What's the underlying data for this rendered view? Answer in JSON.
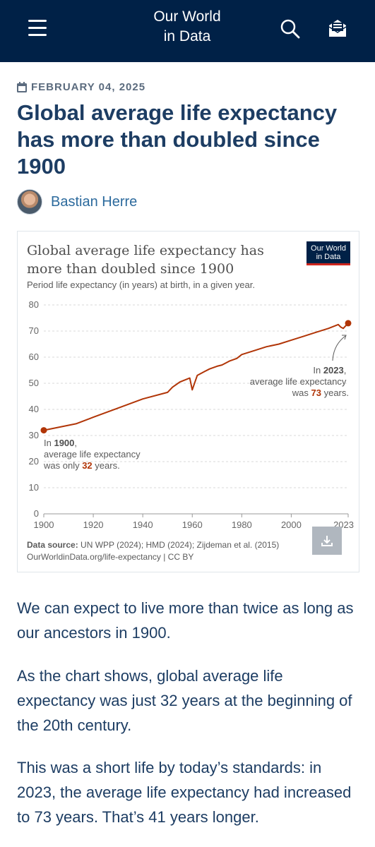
{
  "header": {
    "brand_line1": "Our World",
    "brand_line2": "in Data",
    "menu_icon": "hamburger-menu-icon",
    "search_icon": "search-icon",
    "subscribe_icon": "envelope-icon",
    "background_color": "#002147"
  },
  "article": {
    "date": "FEBRUARY 04, 2025",
    "title": "Global average life expectancy has more than doubled since 1900",
    "author": "Bastian Herre"
  },
  "chart": {
    "title": "Global average life expectancy has more than doubled since 1900",
    "subtitle": "Period life expectancy (in years) at birth, in a given year.",
    "logo_line1": "Our World",
    "logo_line2": "in Data",
    "annotation_1900": {
      "prefix": "In ",
      "year": "1900",
      "line2": "average life expectancy",
      "line3_prefix": "was only ",
      "value": "32",
      "line3_suffix": " years."
    },
    "annotation_2023": {
      "prefix": "In ",
      "year": "2023",
      "line2": "average life expectancy",
      "line3_prefix": "was ",
      "value": "73",
      "line3_suffix": " years."
    },
    "source_label": "Data source:",
    "source_text": "UN WPP (2024); HMD (2024); Zijdeman et al. (2015)",
    "source_url": "OurWorldinData.org/life-expectancy | CC BY",
    "download_icon": "download-icon",
    "line_color": "#b13507"
  },
  "chart_data": {
    "type": "line",
    "title": "Global average life expectancy has more than doubled since 1900",
    "subtitle": "Period life expectancy (in years) at birth, in a given year.",
    "xlim": [
      1900,
      2023
    ],
    "ylim": [
      0,
      80
    ],
    "x_ticks": [
      "1900",
      "1920",
      "1940",
      "1960",
      "1980",
      "2000",
      "2023"
    ],
    "y_ticks": [
      "0",
      "10",
      "20",
      "30",
      "40",
      "50",
      "60",
      "70",
      "80"
    ],
    "grid": true,
    "series": [
      {
        "x": [
          1900,
          1913,
          1920,
          1930,
          1940,
          1950,
          1952,
          1955,
          1959,
          1960,
          1962,
          1965,
          1967,
          1970,
          1972,
          1975,
          1978,
          1980,
          1985,
          1990,
          1995,
          2000,
          2005,
          2010,
          2015,
          2019,
          2020,
          2021,
          2022,
          2023
        ],
        "y": [
          32,
          34.5,
          37,
          40.5,
          44,
          46.5,
          48.5,
          50.5,
          52,
          47.5,
          53,
          54.5,
          55.5,
          56.5,
          57,
          58.5,
          59.5,
          61,
          62.5,
          64,
          65,
          66.5,
          68,
          69.5,
          71,
          72.5,
          71.5,
          71,
          72,
          73
        ]
      }
    ]
  },
  "body": {
    "p1": "We can expect to live more than twice as long as our ancestors in 1900.",
    "p2": "As the chart shows, global average life expectancy was just 32 years at the beginning of the 20th century.",
    "p3": "This was a short life by today’s standards: in 2023, the average life expectancy had increased to 73 years. That’s 41 years longer."
  }
}
